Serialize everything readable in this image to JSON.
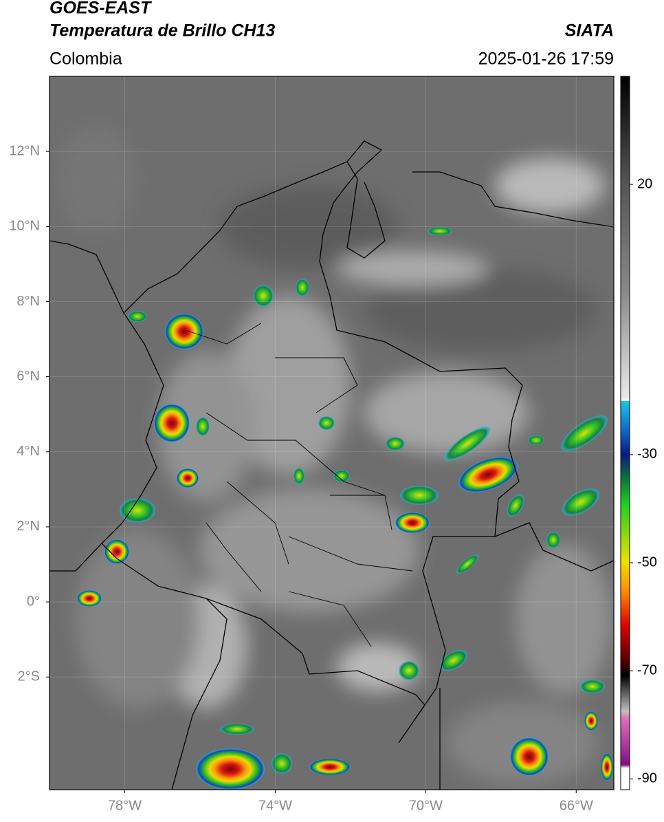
{
  "header": {
    "title_line1": "GOES-EAST",
    "title_line2": "Temperatura de Brillo CH13",
    "source": "SIATA",
    "region": "Colombia",
    "timestamp": "2025-01-26 17:59"
  },
  "map": {
    "lonlim": [
      -80,
      -65
    ],
    "latlim": [
      -5,
      14
    ],
    "lonticks": [
      {
        "value": -78,
        "label": "78°W"
      },
      {
        "value": -74,
        "label": "74°W"
      },
      {
        "value": -70,
        "label": "70°W"
      },
      {
        "value": -66,
        "label": "66°W"
      }
    ],
    "latticks": [
      {
        "value": 12,
        "label": "12°N"
      },
      {
        "value": 10,
        "label": "10°N"
      },
      {
        "value": 8,
        "label": "8°N"
      },
      {
        "value": 6,
        "label": "6°N"
      },
      {
        "value": 4,
        "label": "4°N"
      },
      {
        "value": 2,
        "label": "2°N"
      },
      {
        "value": 0,
        "label": "0°"
      },
      {
        "value": -2,
        "label": "2°S"
      }
    ]
  },
  "colorbar": {
    "lim": [
      -92,
      40
    ],
    "ticks": [
      20,
      -30,
      -50,
      -70,
      -90
    ]
  }
}
